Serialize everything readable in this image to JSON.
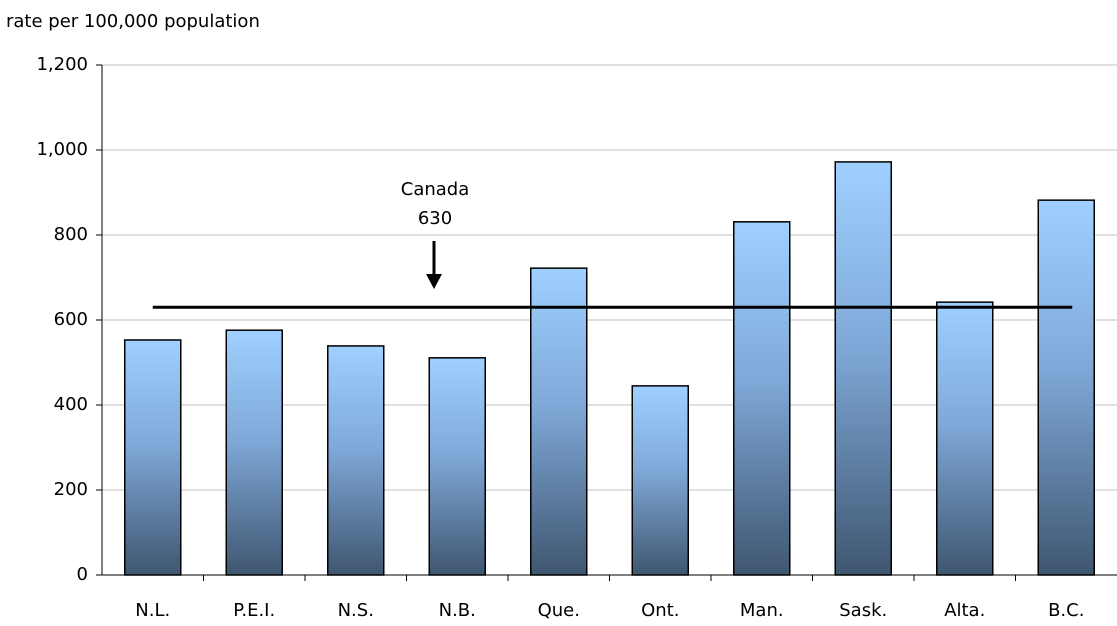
{
  "chart_data": {
    "type": "bar",
    "y_axis_label": "rate per 100,000 population",
    "categories": [
      "N.L.",
      "P.E.I.",
      "N.S.",
      "N.B.",
      "Que.",
      "Ont.",
      "Man.",
      "Sask.",
      "Alta.",
      "B.C."
    ],
    "values": [
      553,
      576,
      539,
      511,
      722,
      445,
      831,
      972,
      642,
      882
    ],
    "color": "#99ccff",
    "ylim": [
      0,
      1200
    ],
    "yticks": [
      0,
      200,
      400,
      600,
      800,
      {
        "value": 1000,
        "label": "1,000"
      },
      {
        "value": 1200,
        "label": "1,200"
      }
    ],
    "grid": true,
    "reference": {
      "label": "Canada",
      "value": 630
    }
  }
}
